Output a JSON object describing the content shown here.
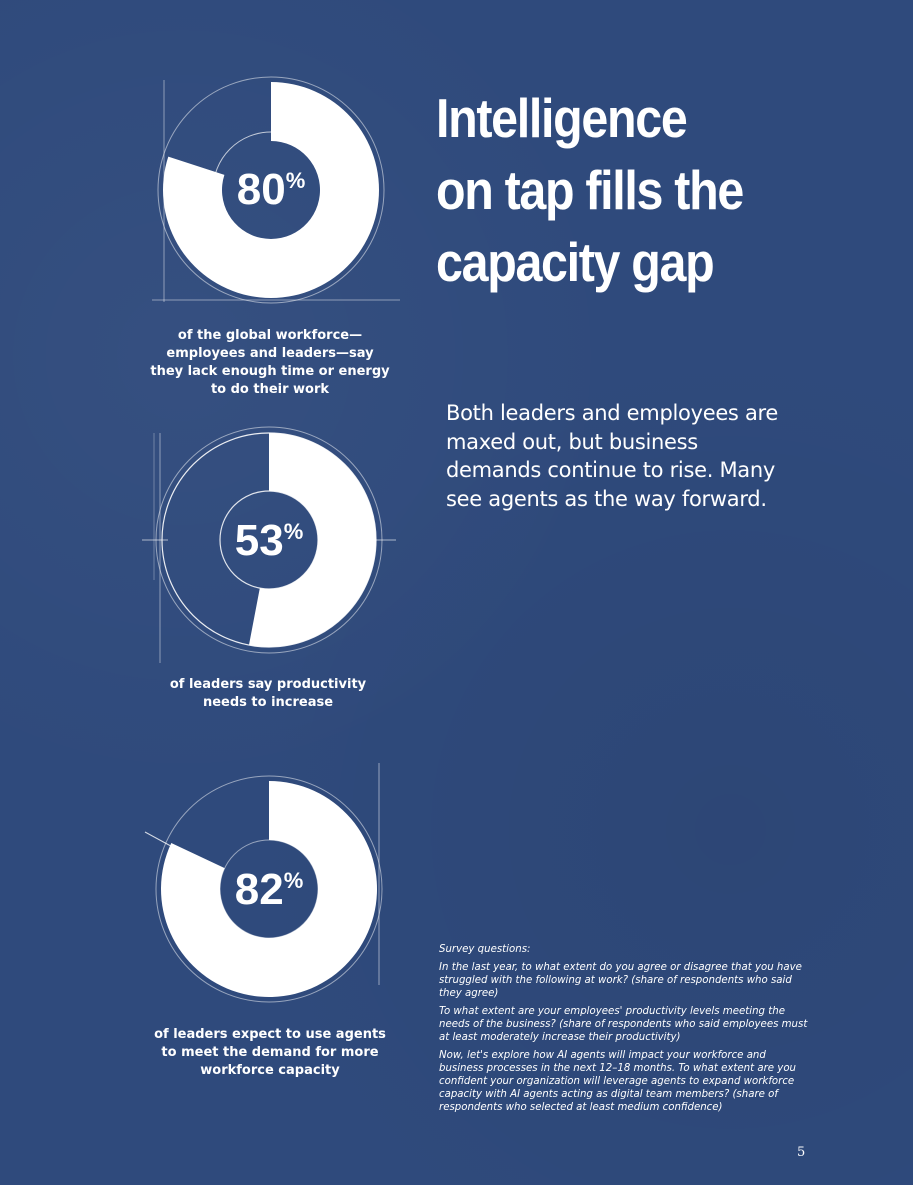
{
  "headline": {
    "line1": "Intelligence",
    "line2": "on tap fills the",
    "line3": "capacity gap"
  },
  "intro": "Both leaders and employees are maxed out, but business demands continue to rise. Many see agents as the way forward.",
  "stats": [
    {
      "value": "80",
      "unit": "%",
      "share": 0.8,
      "caption": "of the global workforce—employees and leaders—say they lack enough time or energy to do their work"
    },
    {
      "value": "53",
      "unit": "%",
      "share": 0.53,
      "caption": "of leaders say productivity needs to increase"
    },
    {
      "value": "82",
      "unit": "%",
      "share": 0.82,
      "caption": "of leaders expect to use agents to meet the demand for more workforce capacity"
    }
  ],
  "survey": {
    "heading": "Survey questions:",
    "q1": "In the last year, to what extent do you agree or disagree that you have struggled with the following at work? (share of respondents who said they agree)",
    "q2": "To what extent are your employees' productivity levels meeting the needs of the business? (share of respondents who said employees must at least moderately increase their productivity)",
    "q3": "Now, let's explore how AI agents will impact your workforce and business processes in the next 12–18 months. To what extent are you confident your organization will leverage agents to expand workforce capacity with AI agents acting as digital team members? (share of respondents who selected at least medium confidence)"
  },
  "page_number": "5",
  "colors": {
    "background": "#2f4a7c",
    "foreground": "#ffffff"
  }
}
